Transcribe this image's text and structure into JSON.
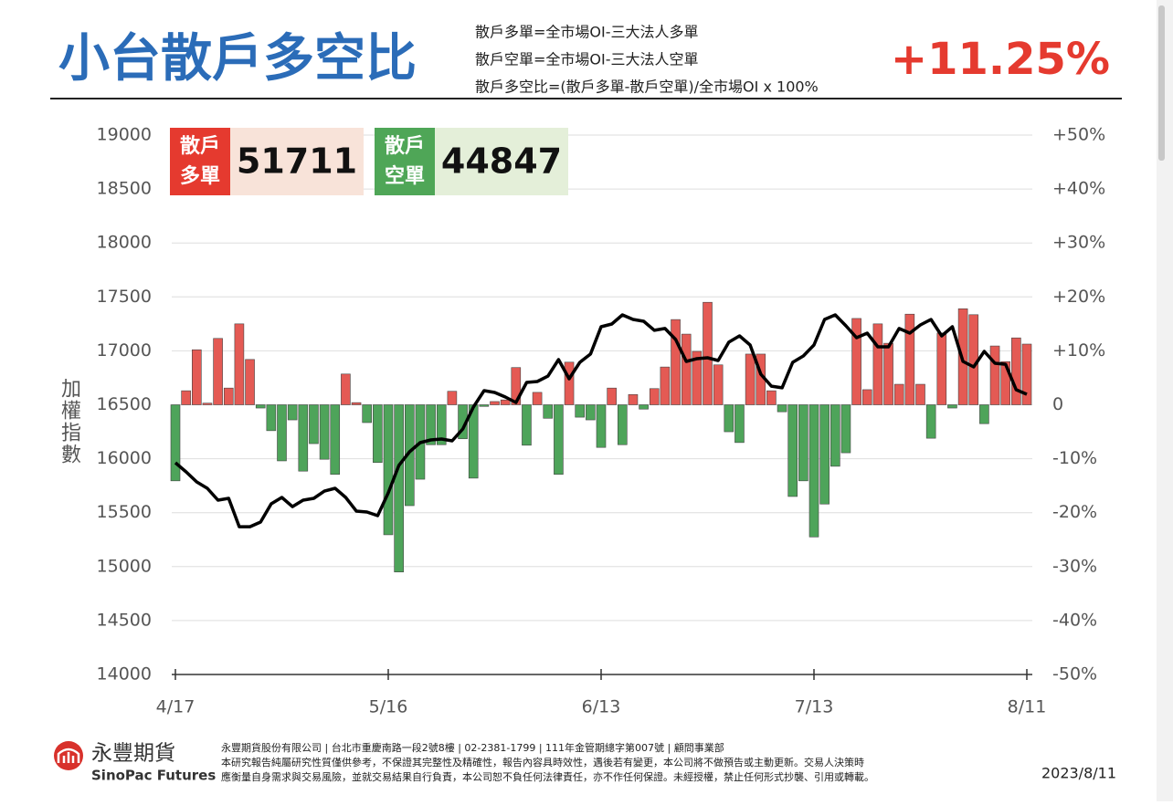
{
  "header": {
    "title": "小台散戶多空比",
    "formulas": [
      "散戶多單=全市場OI-三大法人多單",
      "散戶空單=全市場OI-三大法人空單",
      "散戶多空比=(散戶多單-散戶空單)/全市場OI x 100%"
    ],
    "headline": "+11.25%"
  },
  "stats": [
    {
      "label_lines": [
        "散戶",
        "多單"
      ],
      "value": 51711,
      "color": "#e53a2f",
      "background": "#f8e3d9"
    },
    {
      "label_lines": [
        "散戶",
        "空單"
      ],
      "value": 44847,
      "color": "#4fa657",
      "background": "#e4efd9"
    }
  ],
  "chart_data": {
    "type": "bar",
    "y_label": "加權指數",
    "categories": [
      "4/17",
      null,
      null,
      null,
      null,
      null,
      null,
      null,
      null,
      null,
      null,
      null,
      null,
      null,
      null,
      null,
      null,
      null,
      null,
      null,
      "5/16",
      null,
      null,
      null,
      null,
      null,
      null,
      null,
      null,
      null,
      null,
      null,
      null,
      null,
      null,
      null,
      null,
      null,
      null,
      null,
      "6/13",
      null,
      null,
      null,
      null,
      null,
      null,
      null,
      null,
      null,
      null,
      null,
      null,
      null,
      null,
      null,
      null,
      null,
      null,
      null,
      "7/13",
      null,
      null,
      null,
      null,
      null,
      null,
      null,
      null,
      null,
      null,
      null,
      null,
      null,
      null,
      null,
      null,
      null,
      null,
      null,
      "8/11"
    ],
    "series": [
      {
        "type": "bar",
        "axis": "y2",
        "color": "#e45a54",
        "negative_color": "#4ea45a",
        "values": [
          -14.1,
          2.6,
          10.2,
          0.3,
          12.3,
          3.1,
          15,
          8.4,
          -0.6,
          -4.8,
          -10.4,
          -2.8,
          -12.3,
          -7.2,
          -10.1,
          -12.9,
          5.7,
          0.4,
          -3.3,
          -10.7,
          -24.1,
          -31,
          -18.7,
          -13.8,
          -7.4,
          -7.4,
          2.5,
          -6.3,
          -13.6,
          -0.3,
          0.6,
          0.9,
          6.9,
          -7.5,
          2.3,
          -2.5,
          -12.9,
          7.9,
          -2.3,
          -2.8,
          -7.9,
          3.1,
          -7.4,
          1.9,
          -0.8,
          3,
          7,
          15.8,
          13.1,
          9.9,
          19,
          7.4,
          -5,
          -7,
          9.4,
          9.4,
          2.6,
          -1.3,
          -17,
          -14.1,
          -24.5,
          -18.4,
          -11.4,
          -8.9,
          16,
          2.8,
          15,
          11.4,
          3.8,
          16.8,
          3.8,
          -6.2,
          13.3,
          -0.6,
          17.8,
          16.7,
          -3.5,
          10.9,
          8,
          12.4,
          11.25
        ]
      },
      {
        "type": "line",
        "axis": "y",
        "color": "#000000",
        "values": [
          15963,
          15878,
          15785,
          15726,
          15616,
          15633,
          15370,
          15370,
          15413,
          15582,
          15641,
          15556,
          15616,
          15633,
          15700,
          15726,
          15641,
          15514,
          15506,
          15472,
          15684,
          15937,
          16064,
          16149,
          16174,
          16183,
          16166,
          16276,
          16479,
          16631,
          16614,
          16572,
          16521,
          16707,
          16716,
          16766,
          16919,
          16741,
          16893,
          16970,
          17223,
          17249,
          17333,
          17291,
          17274,
          17190,
          17207,
          17105,
          16902,
          16927,
          16936,
          16910,
          17080,
          17139,
          17054,
          16783,
          16673,
          16657,
          16893,
          16953,
          17054,
          17291,
          17333,
          17232,
          17122,
          17164,
          17037,
          17037,
          17207,
          17164,
          17240,
          17291,
          17139,
          17223,
          16902,
          16851,
          16995,
          16885,
          16876,
          16640,
          16597
        ]
      }
    ],
    "ylim": [
      14000,
      19000
    ],
    "yticks": [
      14000,
      14500,
      15000,
      15500,
      16000,
      16500,
      17000,
      17500,
      18000,
      18500,
      19000
    ],
    "y2lim": [
      -50,
      50
    ],
    "y2ticks": [
      {
        "value": -50,
        "label": "-50%"
      },
      {
        "value": -40,
        "label": "-40%"
      },
      {
        "value": -30,
        "label": "-30%"
      },
      {
        "value": -20,
        "label": "-20%"
      },
      {
        "value": -10,
        "label": "-10%"
      },
      0,
      {
        "value": 10,
        "label": "+10%"
      },
      {
        "value": 20,
        "label": "+20%"
      },
      {
        "value": 30,
        "label": "+30%"
      },
      {
        "value": 40,
        "label": "+40%"
      },
      {
        "value": 50,
        "label": "+50%"
      }
    ],
    "grid": true
  },
  "footer": {
    "company": "永豐期貨",
    "company_en": "SinoPac Futures",
    "notes": [
      "永豐期貨股份有限公司 | 台北市重慶南路一段2號8樓 | 02-2381-1799 | 111年金管期總字第007號 | 顧問事業部",
      "本研究報告純屬研究性質僅供參考，不保證其完整性及精確性，報告內容具時效性，遇後若有變更，本公司將不做預告或主動更新。交易人決策時",
      "應衡量自身需求與交易風險，並就交易結果自行負責，本公司恕不負任何法律責任，亦不作任何保證。未經授權，禁止任何形式抄襲、引用或轉載。"
    ],
    "date": "2023/8/11"
  }
}
